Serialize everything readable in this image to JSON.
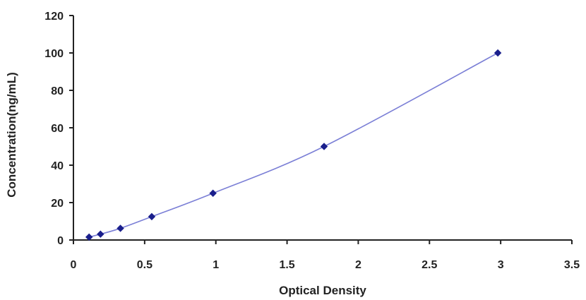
{
  "chart_data": {
    "type": "scatter",
    "title": "",
    "xlabel": "Optical Density",
    "ylabel": "Concentration(ng/mL)",
    "xlim": [
      0,
      3.5
    ],
    "ylim": [
      0,
      120
    ],
    "x_ticks": [
      "0",
      "0.5",
      "1",
      "1.5",
      "2",
      "2.5",
      "3",
      "3.5"
    ],
    "y_ticks": [
      "0",
      "20",
      "40",
      "60",
      "80",
      "100",
      "120"
    ],
    "grid": false,
    "legend": "none",
    "series": [
      {
        "x": [
          0.11,
          0.19,
          0.33,
          0.55,
          0.98,
          1.76,
          2.98
        ],
        "y": [
          1.56,
          3.13,
          6.25,
          12.5,
          25,
          50,
          100
        ],
        "marker": "diamond",
        "line": "smooth",
        "color": "#1a1f8c",
        "line_color": "#7b7fd6"
      }
    ]
  }
}
